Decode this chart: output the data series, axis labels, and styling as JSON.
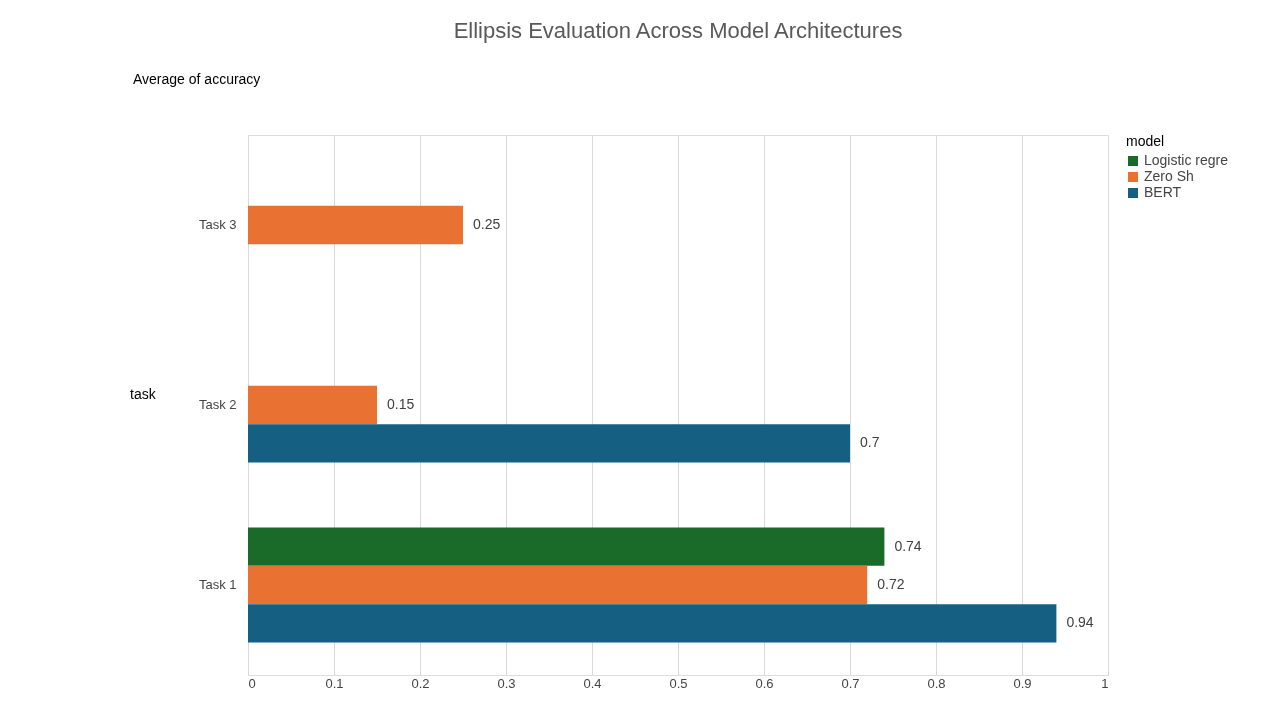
{
  "chart_data": {
    "type": "bar",
    "orientation": "horizontal",
    "title": "Ellipsis Evaluation Across Model Architectures",
    "ylabel": "task",
    "legend_title": "model",
    "annotations": [
      "Average of accuracy"
    ],
    "categories": [
      "Task 3",
      "Task 2",
      "Task 1"
    ],
    "series": [
      {
        "name": "Logistic regre",
        "color": "#1a6b2a",
        "values": [
          null,
          null,
          0.74
        ]
      },
      {
        "name": "Zero Sh",
        "color": "#e97132",
        "values": [
          0.25,
          0.15,
          0.72
        ]
      },
      {
        "name": "BERT",
        "color": "#156082",
        "values": [
          null,
          0.7,
          0.94
        ]
      }
    ],
    "xlim": [
      0,
      1
    ],
    "xticks": [
      0,
      0.1,
      0.2,
      0.3,
      0.4,
      0.5,
      0.6,
      0.7,
      0.8,
      0.9,
      1
    ],
    "grid": "x",
    "legend": "right",
    "data_labels": true
  }
}
